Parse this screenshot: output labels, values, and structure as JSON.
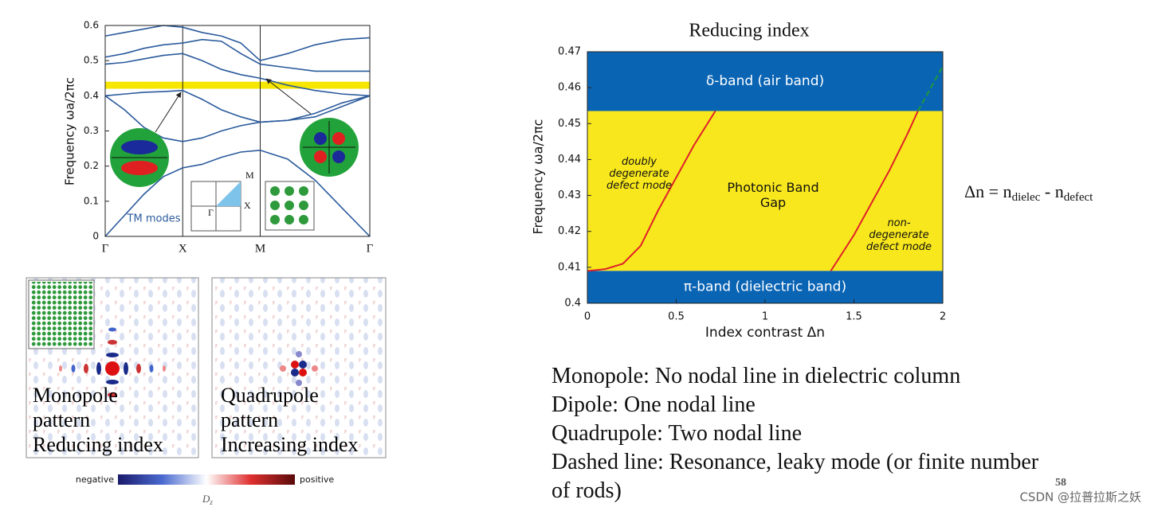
{
  "chart_data": [
    {
      "type": "line",
      "ylabel": "Frequency ωa/2πc",
      "annotation": "TM modes",
      "x": [
        0,
        0.125,
        0.25,
        0.375,
        0.5,
        0.625,
        0.75,
        0.875,
        1,
        1.177,
        1.354,
        1.53,
        1.707
      ],
      "xlim": [
        0,
        1.707
      ],
      "xticks": [
        {
          "value": 0,
          "label": "Γ"
        },
        {
          "value": 0.5,
          "label": "X"
        },
        {
          "value": 1,
          "label": "M"
        },
        {
          "value": 1.707,
          "label": "Γ"
        }
      ],
      "ylim": [
        0,
        0.6
      ],
      "yticks": [
        0,
        0.1,
        0.2,
        0.3,
        0.4,
        0.5,
        0.6
      ],
      "band_gap": [
        0.42,
        0.44
      ],
      "band_gap_color": "#f7e600",
      "inset_labels": [
        "M",
        "X",
        "Γ"
      ],
      "series": [
        {
          "color": "#2a5a9c",
          "values": [
            0,
            0.06,
            0.12,
            0.17,
            0.195,
            0.205,
            0.225,
            0.24,
            0.245,
            0.22,
            0.16,
            0.08,
            0
          ]
        },
        {
          "color": "#2a5a9c",
          "values": [
            0.4,
            0.36,
            0.31,
            0.28,
            0.27,
            0.28,
            0.3,
            0.315,
            0.325,
            0.33,
            0.34,
            0.37,
            0.4
          ]
        },
        {
          "color": "#2a5a9c",
          "values": [
            0.4,
            0.405,
            0.41,
            0.412,
            0.415,
            0.39,
            0.36,
            0.34,
            0.325,
            0.33,
            0.35,
            0.38,
            0.4
          ]
        },
        {
          "color": "#2a5a9c",
          "values": [
            0.49,
            0.495,
            0.505,
            0.515,
            0.52,
            0.5,
            0.475,
            0.46,
            0.45,
            0.43,
            0.415,
            0.405,
            0.4
          ]
        },
        {
          "color": "#2a5a9c",
          "values": [
            0.51,
            0.52,
            0.535,
            0.545,
            0.55,
            0.56,
            0.555,
            0.52,
            0.49,
            0.48,
            0.47,
            0.47,
            0.47
          ]
        },
        {
          "color": "#2a5a9c",
          "values": [
            0.57,
            0.58,
            0.59,
            0.6,
            0.595,
            0.58,
            0.57,
            0.55,
            0.5,
            0.52,
            0.545,
            0.56,
            0.565
          ]
        }
      ]
    },
    {
      "type": "line",
      "title": "Reducing index",
      "xlabel": "Index contrast Δn",
      "ylabel": "Frequency ωa/2πc",
      "xlim": [
        0,
        2
      ],
      "xticks": [
        0,
        0.5,
        1,
        1.5,
        2
      ],
      "ylim": [
        0.4,
        0.47
      ],
      "yticks": [
        0.4,
        0.41,
        0.42,
        0.43,
        0.44,
        0.45,
        0.46,
        0.47
      ],
      "regions": [
        {
          "label": "δ-band (air band)",
          "range": [
            0.4535,
            0.47
          ],
          "color": "#0a64b4"
        },
        {
          "label": "Photonic Band Gap",
          "range": [
            0.409,
            0.4535
          ],
          "color": "#f8e71c"
        },
        {
          "label": "π-band (dielectric band)",
          "range": [
            0.4,
            0.409
          ],
          "color": "#0a64b4"
        }
      ],
      "annotations": [
        "doubly degenerate defect mode",
        "non-degenerate defect mode"
      ],
      "series": [
        {
          "color": "#e0202a",
          "dashed": false,
          "x": [
            0,
            0.1,
            0.2,
            0.3,
            0.4,
            0.5,
            0.6,
            0.72
          ],
          "values": [
            0.409,
            0.4095,
            0.411,
            0.416,
            0.426,
            0.435,
            0.444,
            0.4535
          ]
        },
        {
          "color": "#e0202a",
          "dashed": false,
          "x": [
            1.37,
            1.5,
            1.6,
            1.7,
            1.8,
            1.86
          ],
          "values": [
            0.409,
            0.419,
            0.428,
            0.437,
            0.447,
            0.4535
          ]
        },
        {
          "color": "#1a9a3a",
          "dashed": true,
          "x": [
            1.86,
            2
          ],
          "values": [
            0.4535,
            0.466
          ]
        }
      ]
    }
  ],
  "patterns": [
    {
      "lines": [
        "Monopole",
        "pattern",
        "Reducing index"
      ]
    },
    {
      "lines": [
        "Quadrupole",
        "pattern",
        "Increasing index"
      ]
    }
  ],
  "colorbar": {
    "low": "negative",
    "high": "positive",
    "label": "D",
    "label_sub": "z"
  },
  "equation": {
    "lhs": "Δn = n",
    "sub1": "dielec",
    "mid": " - n",
    "sub2": "defect"
  },
  "bullets": [
    "Monopole: No nodal line in dielectric column",
    "Dipole: One nodal line",
    "Quadrupole: Two nodal line",
    "Dashed line: Resonance, leaky mode (or finite number of rods)"
  ],
  "page_number": "58",
  "watermark": "CSDN @拉普拉斯之妖"
}
